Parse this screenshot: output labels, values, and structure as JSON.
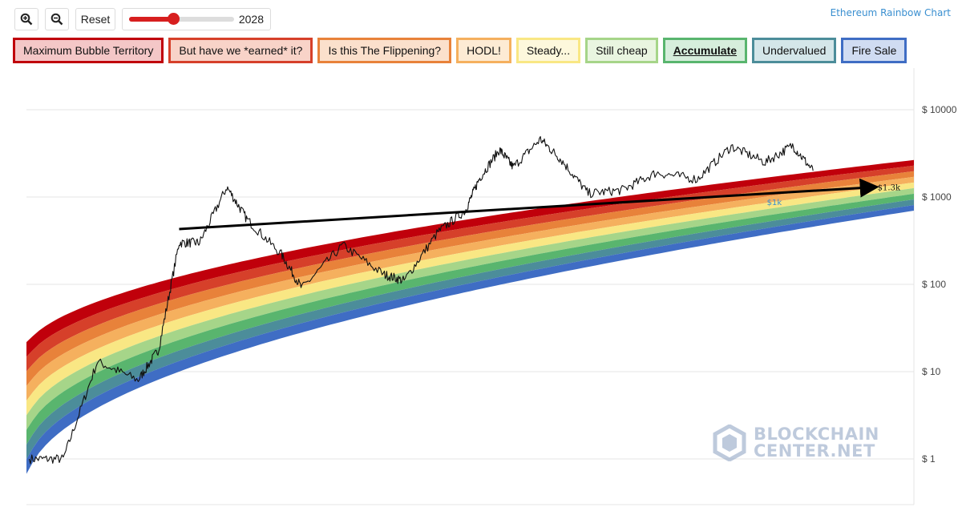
{
  "toolbar": {
    "zoom_in_icon": "zoom-in-icon",
    "zoom_out_icon": "zoom-out-icon",
    "reset_label": "Reset",
    "slider_value": "2028",
    "slider_fraction": 0.42
  },
  "corner_title": "Ethereum Rainbow Chart",
  "legend": [
    {
      "label": "Maximum Bubble Territory",
      "border": "#c0000b",
      "fill": "#f4c7c7"
    },
    {
      "label": "But have we *earned* it?",
      "border": "#d6402a",
      "fill": "#f8d3c8"
    },
    {
      "label": "Is this The Flippening?",
      "border": "#e8823a",
      "fill": "#fbe0cc"
    },
    {
      "label": "HODL!",
      "border": "#f5b05e",
      "fill": "#fdebd4"
    },
    {
      "label": "Steady...",
      "border": "#f9e784",
      "fill": "#fdf8dc"
    },
    {
      "label": "Still cheap",
      "border": "#a6d589",
      "fill": "#e9f5e0"
    },
    {
      "label": "Accumulate",
      "border": "#59b56e",
      "fill": "#d6eedc",
      "active": true
    },
    {
      "label": "Undervalued",
      "border": "#4c8d9a",
      "fill": "#d4e6e9"
    },
    {
      "label": "Fire Sale",
      "border": "#3f6dc4",
      "fill": "#d0dcf2"
    }
  ],
  "chart_data": {
    "type": "line",
    "y_scale": "log",
    "ylim": [
      0.3,
      30000
    ],
    "yticks": [
      {
        "value": 10000,
        "label": "$ 10000"
      },
      {
        "value": 1000,
        "label": "$ 1000"
      },
      {
        "value": 100,
        "label": "$ 100"
      },
      {
        "value": 10,
        "label": "$ 10"
      },
      {
        "value": 1,
        "label": "$ 1"
      }
    ],
    "band_colors": [
      "#c0000b",
      "#d6402a",
      "#e8823a",
      "#f5b05e",
      "#f9e784",
      "#a6d589",
      "#59b56e",
      "#4c8d9a",
      "#3f6dc4"
    ],
    "price_series": {
      "name": "ETH price",
      "x": [
        "2015-08",
        "2016-01",
        "2016-06",
        "2016-12",
        "2017-03",
        "2017-06",
        "2017-09",
        "2018-01",
        "2018-04",
        "2018-09",
        "2018-12",
        "2019-06",
        "2019-12",
        "2020-03",
        "2020-08",
        "2020-12",
        "2021-02",
        "2021-05",
        "2021-07",
        "2021-11",
        "2022-02",
        "2022-06",
        "2022-11",
        "2023-04",
        "2023-10",
        "2024-03",
        "2024-08",
        "2024-12",
        "2025-03"
      ],
      "values": [
        1.0,
        1.0,
        13,
        8,
        18,
        300,
        300,
        1300,
        550,
        220,
        90,
        280,
        130,
        110,
        400,
        700,
        1600,
        3500,
        2200,
        4600,
        2700,
        1100,
        1200,
        1900,
        1600,
        3800,
        2500,
        3900,
        2000
      ]
    },
    "trend_line": {
      "x": [
        "2017-06",
        "2025-12"
      ],
      "values": [
        430,
        1300
      ],
      "end_label": "$1.3k"
    },
    "annotation": {
      "label": "$1k",
      "value": 1000
    }
  },
  "watermark": {
    "line1": "BLOCKCHAIN",
    "line2": "CENTER.NET"
  }
}
